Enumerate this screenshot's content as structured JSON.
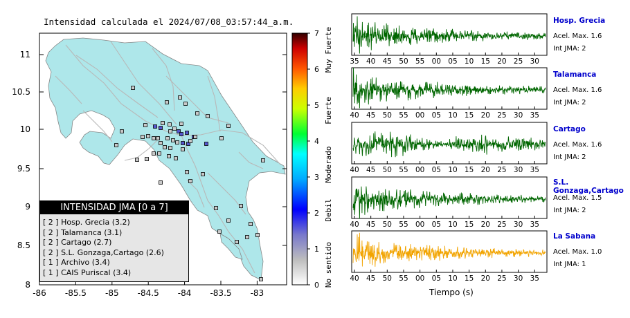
{
  "colors": {
    "land": "#aee7ea",
    "sea": "#ffffff",
    "roads": "#b8b8b8",
    "station_fill": "#c9c9c9",
    "station_high": "#5555cc",
    "trace_green": "#006600",
    "trace_orange": "#f2a400",
    "station_name": "#0000cc"
  },
  "map": {
    "title": "Intensidad calculada el 2024/07/08_03:57:44_a.m.",
    "x_ticks": [
      "-86",
      "-85.5",
      "-85",
      "-84.5",
      "-84",
      "-83.5",
      "-83"
    ],
    "y_ticks": [
      "11",
      "10.5",
      "10",
      "9.5",
      "9",
      "8.5",
      "8"
    ],
    "colorbar": {
      "ticks": [
        "7",
        "6",
        "5",
        "4",
        "3",
        "2",
        "1",
        "0"
      ],
      "labels": [
        "Muy Fuerte",
        "Fuerte",
        "Moderado",
        "Debil",
        "No sentido"
      ]
    },
    "legend": {
      "title": "INTENSIDAD JMA [0 a 7]",
      "items": [
        "[ 2 ]  Hosp. Grecia (3.2)",
        "[ 2 ]  Talamanca (3.1)",
        "[ 2 ]  Cartago (2.7)",
        "[ 2 ]  S.L. Gonzaga,Cartago (2.6)",
        "[ 1 ]  Archivo (3.4)",
        "[ 1 ]  CAIS Puriscal (3.4)"
      ]
    }
  },
  "chart_data": [
    {
      "type": "map",
      "title": "Intensidad calculada el 2024/07/08_03:57:44_a.m.",
      "x_ticks": [
        -86,
        -85.5,
        -85,
        -84.5,
        -84,
        -83.5,
        -83
      ],
      "y_ticks": [
        11,
        10.5,
        10,
        9.5,
        9,
        8.5,
        8
      ],
      "colorbar_range": [
        0,
        7
      ],
      "legend_title": "INTENSIDAD JMA [0 a 7]"
    },
    {
      "type": "line",
      "xlabel": "Tiempo (s)",
      "panels": [
        {
          "name": "Hosp. Grecia",
          "acc": "Acel. Max. 1.6",
          "int": "Int JMA: 2",
          "color": "#006600",
          "ticks": [
            "35",
            "40",
            "45",
            "50",
            "55",
            "00",
            "05",
            "10",
            "15",
            "20",
            "25",
            "30"
          ]
        },
        {
          "name": "Talamanca",
          "acc": "Acel. Max. 1.6",
          "int": "Int JMA: 2",
          "color": "#006600",
          "ticks": [
            "40",
            "45",
            "50",
            "55",
            "00",
            "05",
            "10",
            "15",
            "20",
            "25",
            "30",
            "35"
          ]
        },
        {
          "name": "Cartago",
          "acc": "Acel. Max. 1.6",
          "int": "Int JMA: 2",
          "color": "#006600",
          "ticks": [
            "40",
            "45",
            "50",
            "55",
            "00",
            "05",
            "10",
            "15",
            "20",
            "25",
            "30",
            "35"
          ]
        },
        {
          "name": "S.L. Gonzaga,Cartago",
          "acc": "Acel. Max. 1.5",
          "int": "Int JMA: 2",
          "color": "#006600",
          "ticks": [
            "40",
            "45",
            "50",
            "55",
            "00",
            "05",
            "10",
            "15",
            "20",
            "25",
            "30",
            "35"
          ]
        },
        {
          "name": "La Sabana",
          "acc": "Acel. Max. 1.0",
          "int": "Int JMA: 1",
          "color": "#f2a400",
          "ticks": [
            "40",
            "45",
            "50",
            "55",
            "00",
            "05",
            "10",
            "15",
            "20",
            "25",
            "30",
            "35"
          ]
        }
      ]
    }
  ]
}
